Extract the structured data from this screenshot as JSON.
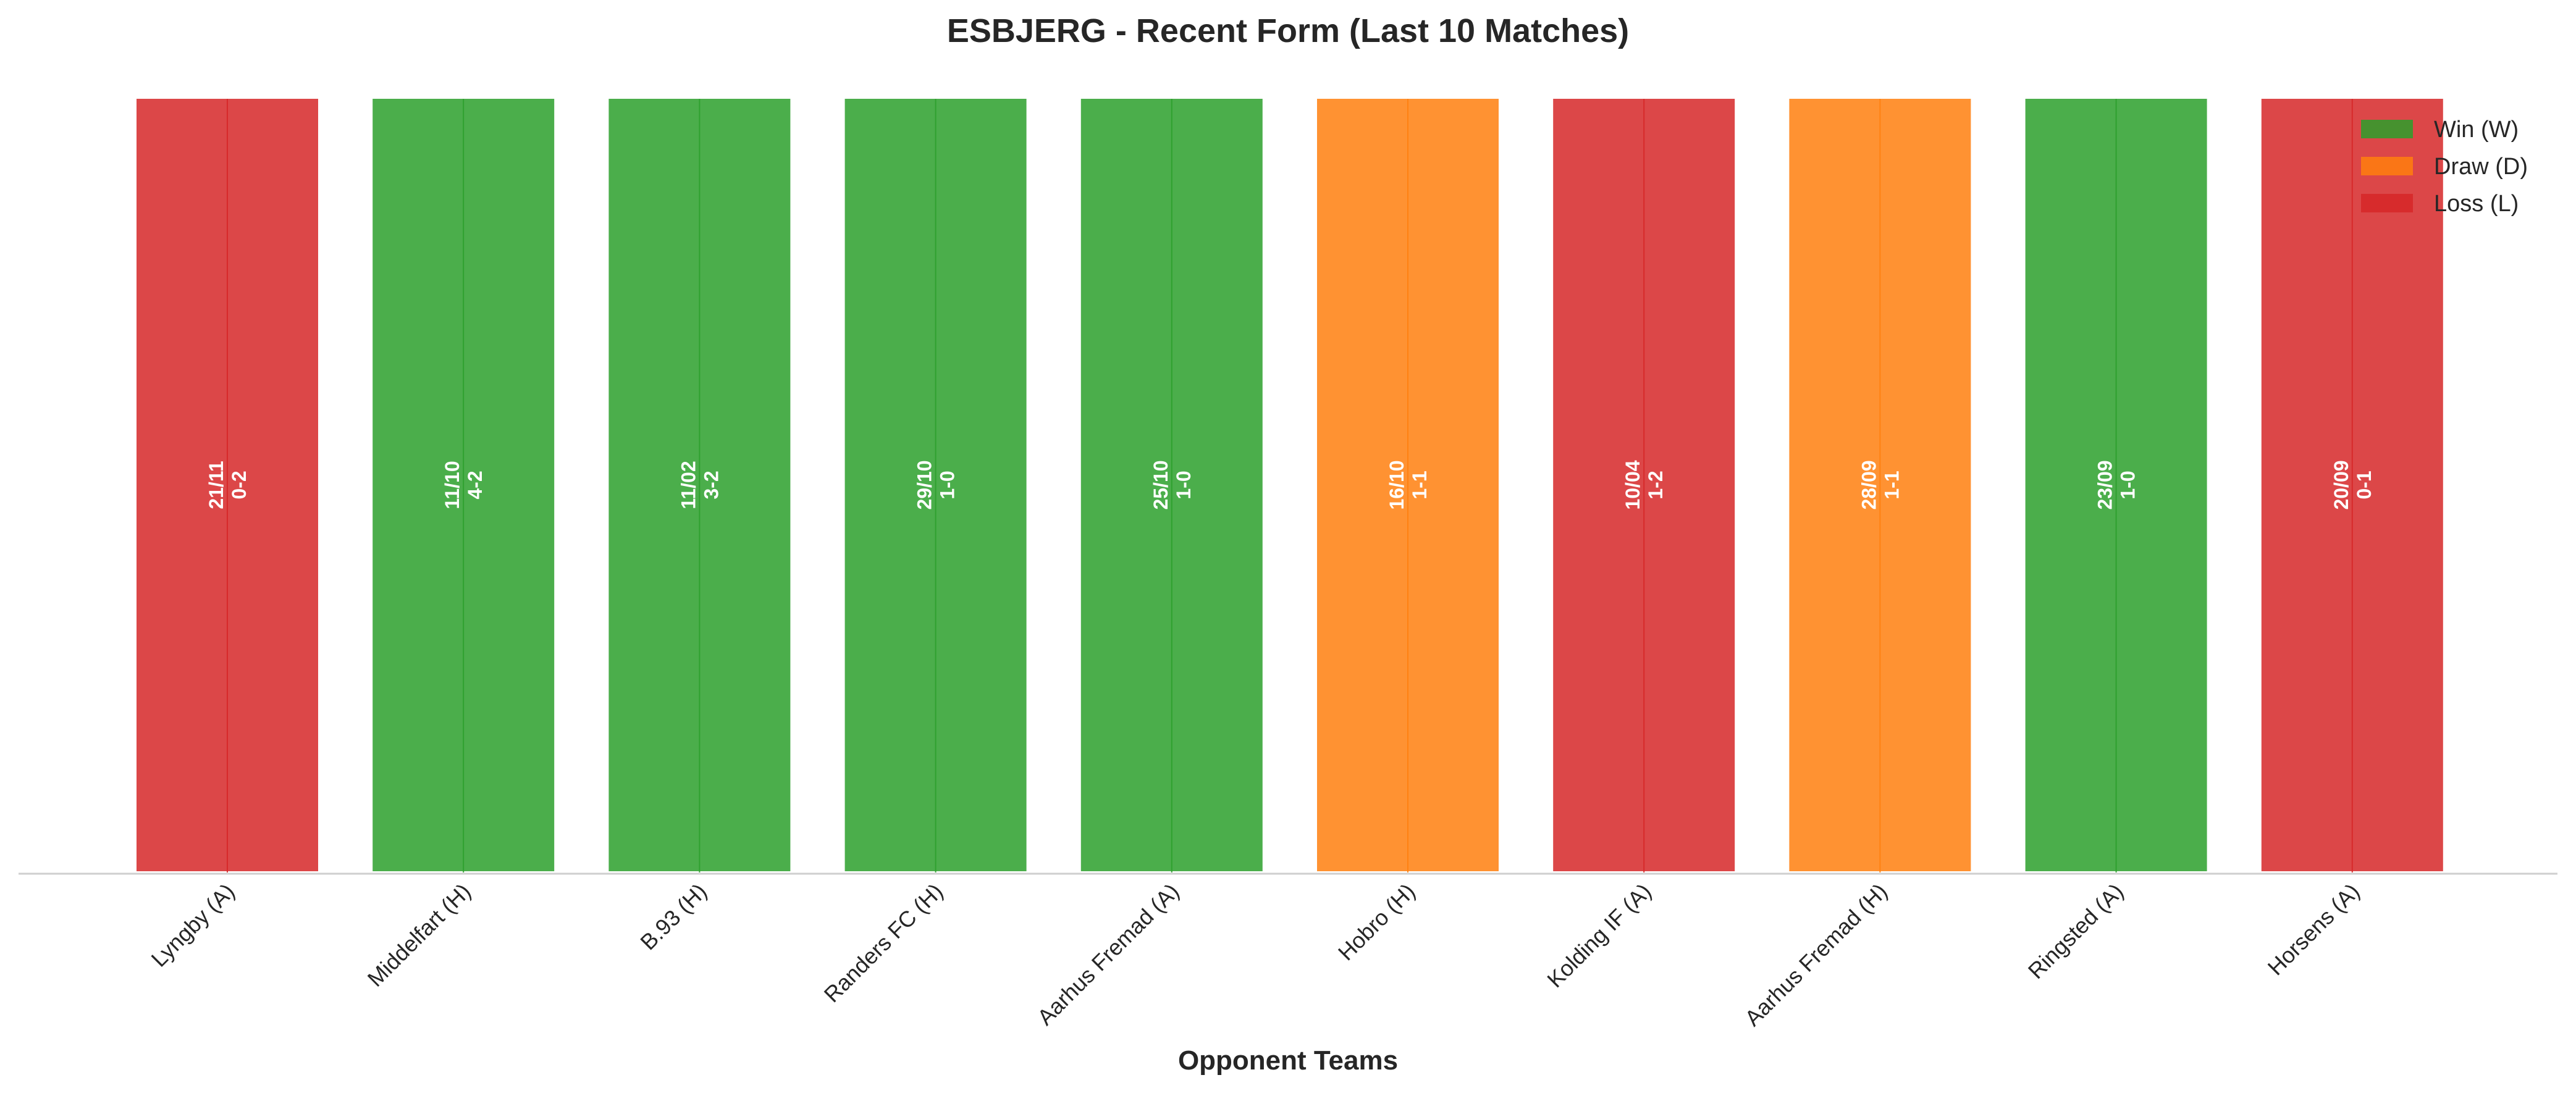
{
  "chart_data": {
    "type": "bar",
    "title": "ESBJERG - Recent Form (Last 10 Matches)",
    "xlabel": "Opponent Teams",
    "ylabel": "",
    "categories": [
      "Lyngby (A)",
      "Middelfart (H)",
      "B.93 (H)",
      "Randers FC (H)",
      "Aarhus Fremad (A)",
      "Hobro (H)",
      "Kolding IF (A)",
      "Aarhus Fremad (H)",
      "Ringsted (A)",
      "Horsens (A)"
    ],
    "values": [
      1,
      1,
      1,
      1,
      1,
      1,
      1,
      1,
      1,
      1
    ],
    "ylim": [
      0,
      1
    ],
    "results": [
      "L",
      "W",
      "W",
      "W",
      "W",
      "D",
      "L",
      "D",
      "W",
      "L"
    ],
    "dates": [
      "21/11",
      "11/10",
      "11/02",
      "29/10",
      "25/10",
      "16/10",
      "10/04",
      "28/09",
      "23/09",
      "20/09"
    ],
    "scores": [
      "0-2",
      "4-2",
      "3-2",
      "1-0",
      "1-0",
      "1-1",
      "1-2",
      "1-1",
      "1-0",
      "0-1"
    ],
    "legend": {
      "position": "top-right",
      "entries": [
        {
          "key": "W",
          "label": "Win (W)",
          "color": "#2ca02c"
        },
        {
          "key": "D",
          "label": "Draw (D)",
          "color": "#ff7f0e"
        },
        {
          "key": "L",
          "label": "Loss (L)",
          "color": "#d62728"
        }
      ]
    },
    "grid": false
  }
}
